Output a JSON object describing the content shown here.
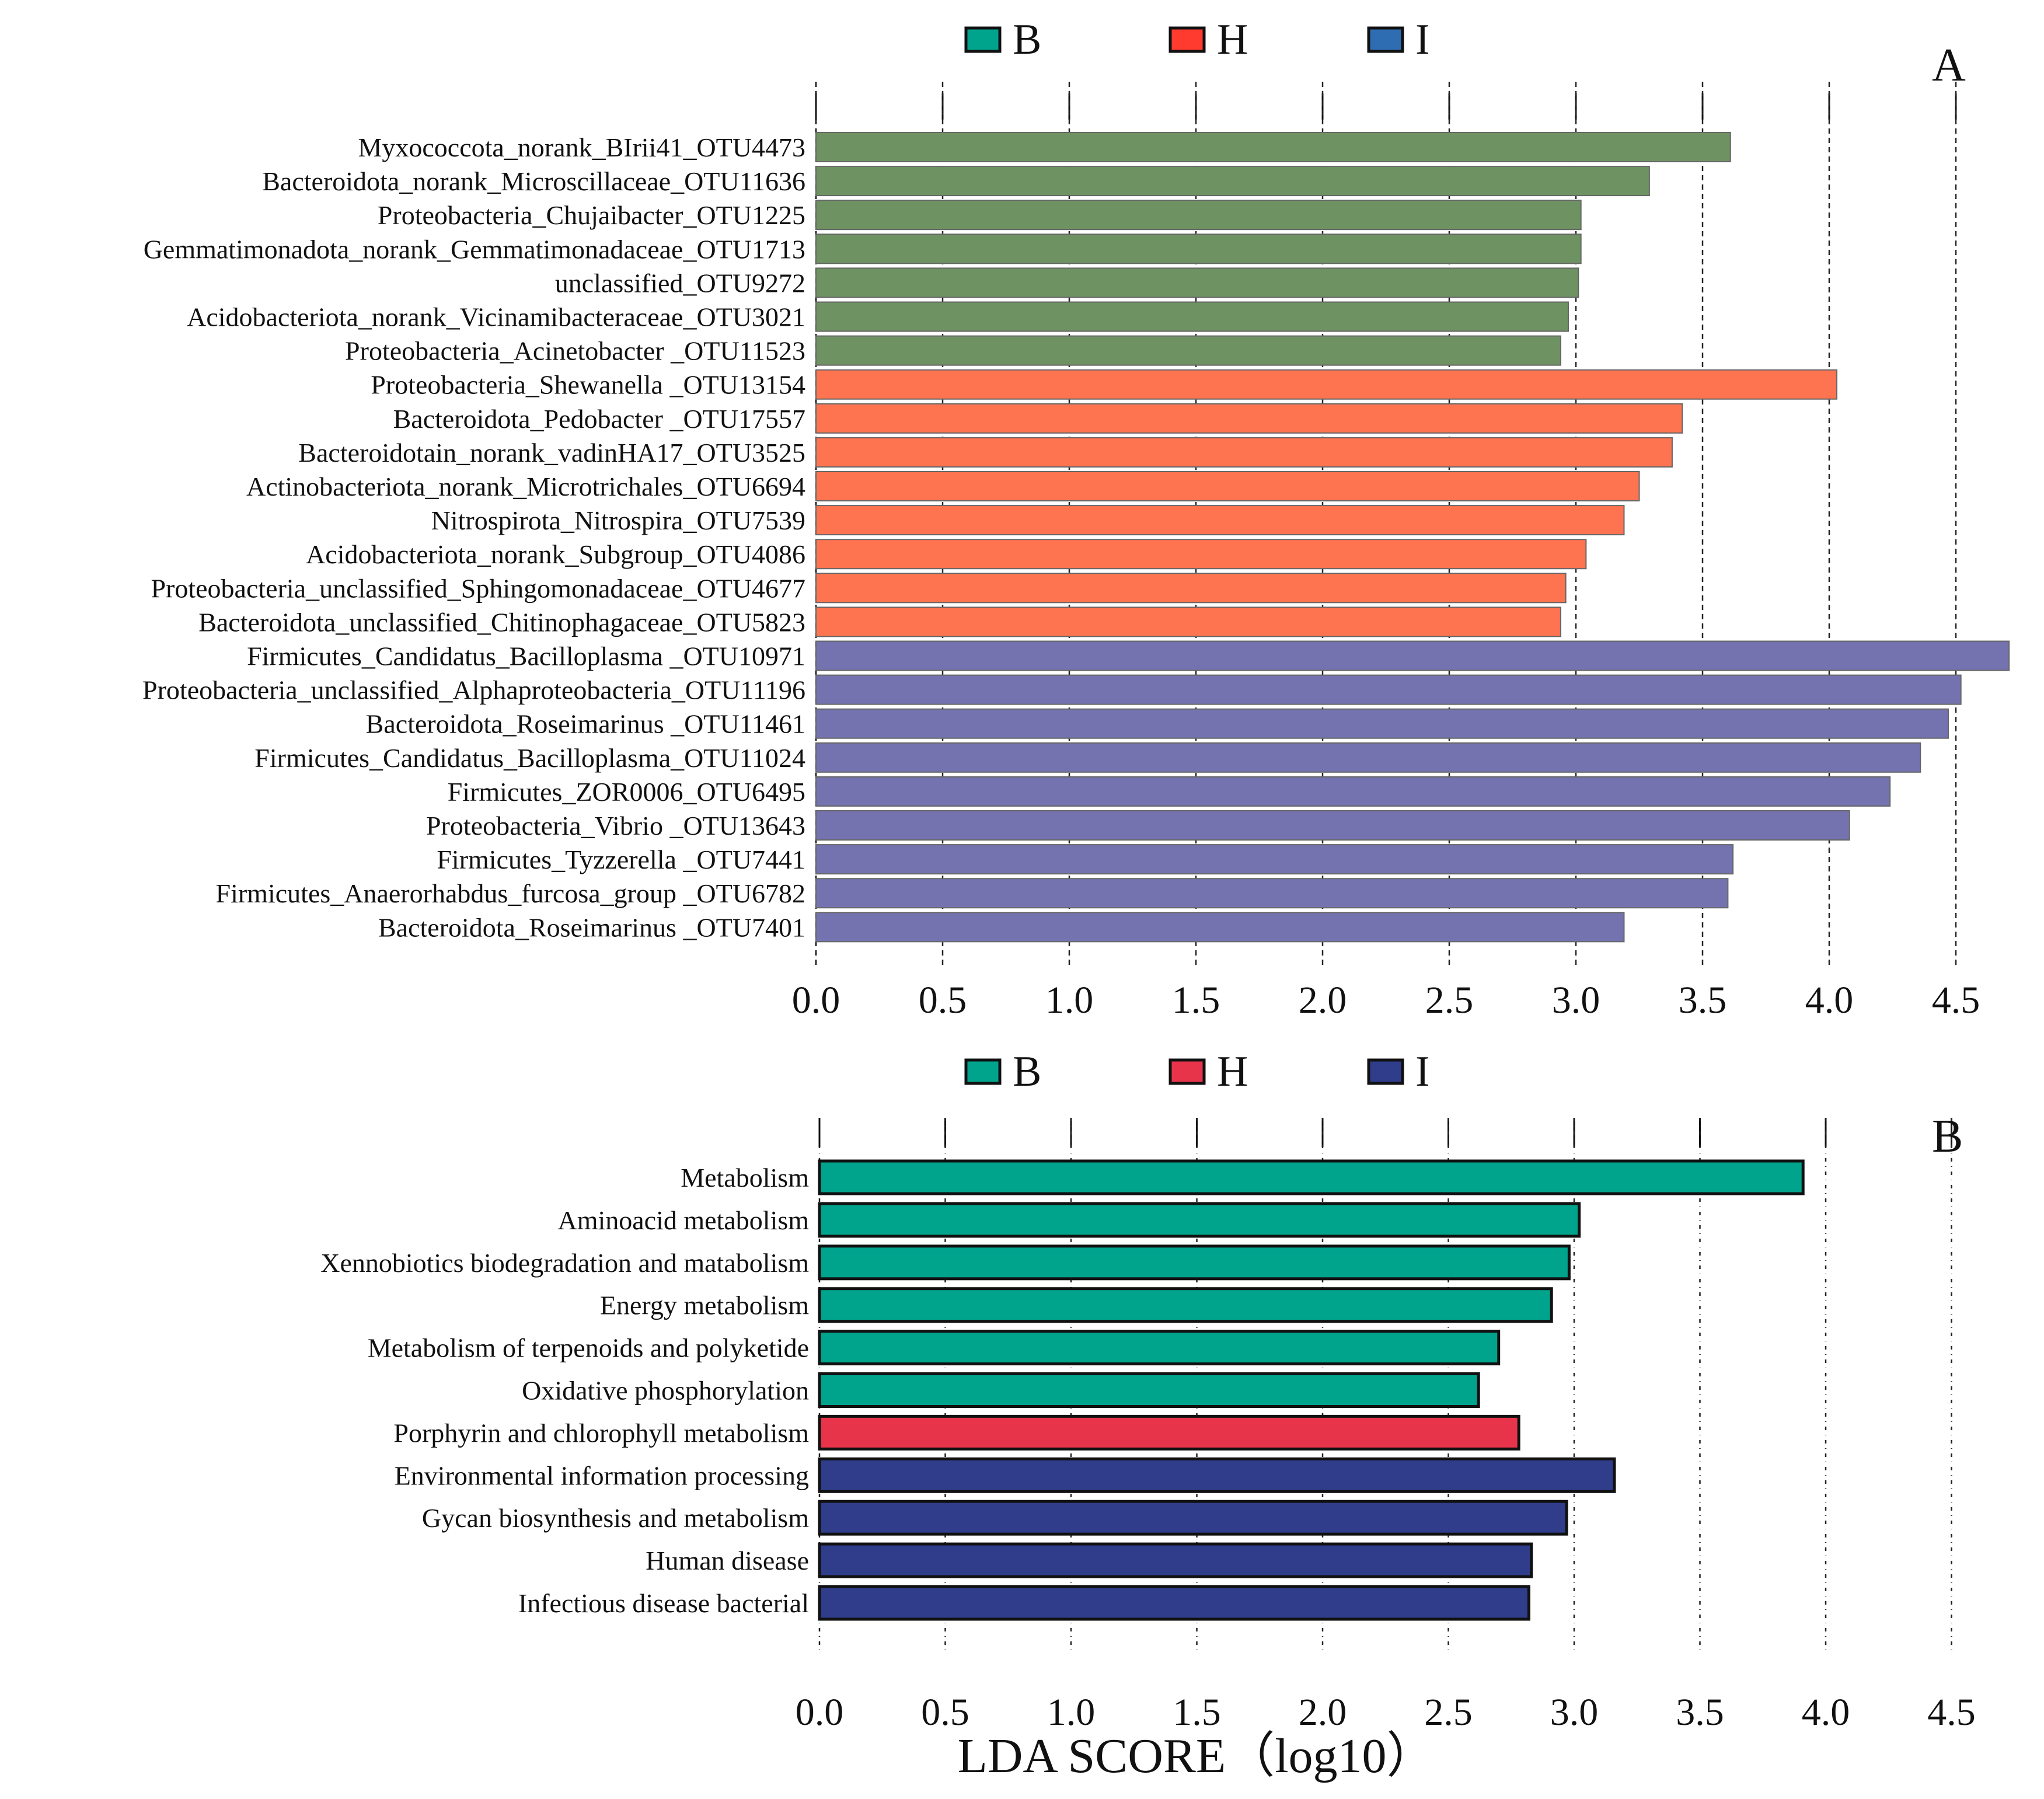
{
  "x_axis_title": "LDA SCORE（log10）",
  "chart_data": [
    {
      "panel_letter": "A",
      "type": "bar",
      "orientation": "horizontal",
      "legend": [
        {
          "label": "B",
          "color": "#00a38c"
        },
        {
          "label": "H",
          "color": "#ff3b30"
        },
        {
          "label": "I",
          "color": "#2f6db2"
        }
      ],
      "group_colors": {
        "B": "#6e9262",
        "H": "#ff7450",
        "I": "#7473b0"
      },
      "xlim": [
        0,
        4.7
      ],
      "xticks": [
        "0.0",
        "0.5",
        "1.0",
        "1.5",
        "2.0",
        "2.5",
        "3.0",
        "3.5",
        "4.0",
        "4.5"
      ],
      "bars": [
        {
          "label": "Myxococcota_norank_BIrii41_OTU4473",
          "value": 3.61,
          "group": "B"
        },
        {
          "label": "Bacteroidota_norank_Microscillaceae_OTU11636",
          "value": 3.29,
          "group": "B"
        },
        {
          "label": "Proteobacteria_Chujaibacter_OTU1225",
          "value": 3.02,
          "group": "B"
        },
        {
          "label": "Gemmatimonadota_norank_Gemmatimonadaceae_OTU1713",
          "value": 3.02,
          "group": "B"
        },
        {
          "label": "unclassified_OTU9272",
          "value": 3.01,
          "group": "B"
        },
        {
          "label": "Acidobacteriota_norank_Vicinamibacteraceae_OTU3021",
          "value": 2.97,
          "group": "B"
        },
        {
          "label": "Proteobacteria_Acinetobacter _OTU11523",
          "value": 2.94,
          "group": "B"
        },
        {
          "label": "Proteobacteria_Shewanella _OTU13154",
          "value": 4.03,
          "group": "H"
        },
        {
          "label": "Bacteroidota_Pedobacter _OTU17557",
          "value": 3.42,
          "group": "H"
        },
        {
          "label": "Bacteroidotain_norank_vadinHA17_OTU3525",
          "value": 3.38,
          "group": "H"
        },
        {
          "label": "Actinobacteriota_norank_Microtrichales_OTU6694",
          "value": 3.25,
          "group": "H"
        },
        {
          "label": "Nitrospirota_Nitrospira_OTU7539",
          "value": 3.19,
          "group": "H"
        },
        {
          "label": "Acidobacteriota_norank_Subgroup_OTU4086",
          "value": 3.04,
          "group": "H"
        },
        {
          "label": "Proteobacteria_unclassified_Sphingomonadaceae_OTU4677",
          "value": 2.96,
          "group": "H"
        },
        {
          "label": "Bacteroidota_unclassified_Chitinophagaceae_OTU5823",
          "value": 2.94,
          "group": "H"
        },
        {
          "label": "Firmicutes_Candidatus_Bacilloplasma _OTU10971",
          "value": 4.71,
          "group": "I"
        },
        {
          "label": "Proteobacteria_unclassified_Alphaproteobacteria_OTU11196",
          "value": 4.52,
          "group": "I"
        },
        {
          "label": "Bacteroidota_Roseimarinus _OTU11461",
          "value": 4.47,
          "group": "I"
        },
        {
          "label": "Firmicutes_Candidatus_Bacilloplasma_OTU11024",
          "value": 4.36,
          "group": "I"
        },
        {
          "label": "Firmicutes_ZOR0006_OTU6495",
          "value": 4.24,
          "group": "I"
        },
        {
          "label": "Proteobacteria_Vibrio _OTU13643",
          "value": 4.08,
          "group": "I"
        },
        {
          "label": "Firmicutes_Tyzzerella _OTU7441",
          "value": 3.62,
          "group": "I"
        },
        {
          "label": "Firmicutes_Anaerorhabdus_furcosa_group _OTU6782",
          "value": 3.6,
          "group": "I"
        },
        {
          "label": "Bacteroidota_Roseimarinus _OTU7401",
          "value": 3.19,
          "group": "I"
        }
      ]
    },
    {
      "panel_letter": "B",
      "type": "bar",
      "orientation": "horizontal",
      "legend": [
        {
          "label": "B",
          "color": "#00a38c"
        },
        {
          "label": "H",
          "color": "#e8344a"
        },
        {
          "label": "I",
          "color": "#2f3d8a"
        }
      ],
      "group_colors": {
        "B": "#00a38c",
        "H": "#e8344a",
        "I": "#2f3d8a"
      },
      "xlim": [
        0,
        4.7
      ],
      "xticks": [
        "0.0",
        "0.5",
        "1.0",
        "1.5",
        "2.0",
        "2.5",
        "3.0",
        "3.5",
        "4.0",
        "4.5"
      ],
      "bars": [
        {
          "label": "Metabolism",
          "value": 3.91,
          "group": "B"
        },
        {
          "label": "Aminoacid metabolism",
          "value": 3.02,
          "group": "B"
        },
        {
          "label": "Xennobiotics biodegradation and matabolism",
          "value": 2.98,
          "group": "B"
        },
        {
          "label": "Energy metabolism",
          "value": 2.91,
          "group": "B"
        },
        {
          "label": "Metabolism of terpenoids and polyketide",
          "value": 2.7,
          "group": "B"
        },
        {
          "label": "Oxidative phosphorylation",
          "value": 2.62,
          "group": "B"
        },
        {
          "label": "Porphyrin and chlorophyll metabolism",
          "value": 2.78,
          "group": "H"
        },
        {
          "label": "Environmental information processing",
          "value": 3.16,
          "group": "I"
        },
        {
          "label": "Gycan biosynthesis and metabolism",
          "value": 2.97,
          "group": "I"
        },
        {
          "label": "Human disease",
          "value": 2.83,
          "group": "I"
        },
        {
          "label": "Infectious disease bacterial",
          "value": 2.82,
          "group": "I"
        }
      ]
    }
  ]
}
